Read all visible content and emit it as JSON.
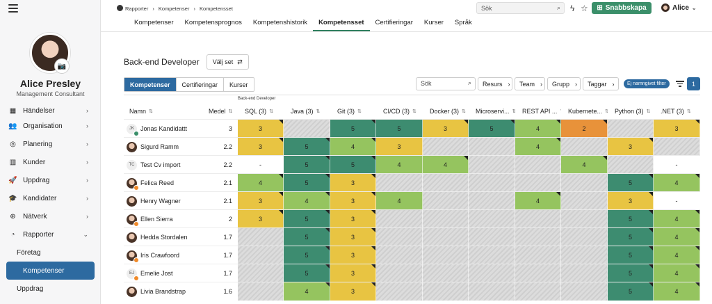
{
  "user": {
    "name": "Alice Presley",
    "role": "Management Consultant"
  },
  "nav": [
    {
      "label": "Händelser",
      "icon": "calendar-icon"
    },
    {
      "label": "Organisation",
      "icon": "users-icon"
    },
    {
      "label": "Planering",
      "icon": "planning-icon"
    },
    {
      "label": "Kunder",
      "icon": "building-icon"
    },
    {
      "label": "Uppdrag",
      "icon": "rocket-icon"
    },
    {
      "label": "Kandidater",
      "icon": "graduation-icon"
    },
    {
      "label": "Nätverk",
      "icon": "globe-icon"
    },
    {
      "label": "Rapporter",
      "icon": "pie-chart-icon"
    }
  ],
  "subnav": [
    "Företag",
    "Kompetenser",
    "Uppdrag"
  ],
  "topbar": {
    "breadcrumb": [
      "Rapporter",
      "Kompetenser",
      "Kompetensset"
    ],
    "search_placeholder": "Sök",
    "quick_create": "Snabbskapa",
    "user_short": "Alice"
  },
  "tabs": [
    "Kompetenser",
    "Kompetensprognos",
    "Kompetenshistorik",
    "Kompetensset",
    "Certifieringar",
    "Kurser",
    "Språk"
  ],
  "set": {
    "title": "Back-end Developer",
    "choose_label": "Välj set"
  },
  "segments": [
    "Kompetenser",
    "Certifieringar",
    "Kurser"
  ],
  "filters": {
    "search": "Sök",
    "buttons": [
      "Resurs",
      "Team",
      "Grupp",
      "Taggar"
    ],
    "chip": "Ej namngivet filter",
    "count": "1"
  },
  "table": {
    "group": "Back-end Developer",
    "name_header": "Namn",
    "mean_header": "Medel",
    "columns": [
      "SQL (3)",
      "Java (3)",
      "Git (3)",
      "CI/CD (3)",
      "Docker (3)",
      "Microservi...",
      "REST API ...",
      "Kubernete...",
      "Python (3)",
      ".NET (3)"
    ],
    "rows": [
      {
        "name": "Jonas Kandidattt",
        "initials": "JK",
        "badge": "green",
        "mean": "3",
        "cells": [
          "3",
          "",
          "5",
          "5",
          "3",
          "5",
          "4",
          "2",
          "",
          "3"
        ]
      },
      {
        "name": "Sigurd Ramm",
        "initials": "",
        "badge": "",
        "mean": "2.2",
        "cells": [
          "3",
          "5",
          "4",
          "3",
          "",
          "",
          "4",
          "",
          "3",
          ""
        ]
      },
      {
        "name": "Test Cv import",
        "initials": "TC",
        "badge": "",
        "mean": "2.2",
        "cells": [
          "-",
          "5",
          "5",
          "4",
          "4",
          "",
          "",
          "4",
          "",
          "-"
        ]
      },
      {
        "name": "Felica Reed",
        "initials": "",
        "badge": "orange",
        "mean": "2.1",
        "cells": [
          "4",
          "5",
          "3",
          "",
          "",
          "",
          "",
          "",
          "5",
          "4"
        ]
      },
      {
        "name": "Henry Wagner",
        "initials": "",
        "badge": "",
        "mean": "2.1",
        "cells": [
          "3",
          "4",
          "3",
          "4",
          "",
          "",
          "4",
          "",
          "3",
          "-"
        ]
      },
      {
        "name": "Ellen Sierra",
        "initials": "",
        "badge": "orange",
        "mean": "2",
        "cells": [
          "3",
          "5",
          "3",
          "",
          "",
          "",
          "",
          "",
          "5",
          "4"
        ]
      },
      {
        "name": "Hedda Stordalen",
        "initials": "",
        "badge": "",
        "mean": "1.7",
        "cells": [
          "",
          "5",
          "3",
          "",
          "",
          "",
          "",
          "",
          "5",
          "4"
        ]
      },
      {
        "name": "Iris Crawfoord",
        "initials": "",
        "badge": "orange",
        "mean": "1.7",
        "cells": [
          "",
          "5",
          "3",
          "",
          "",
          "",
          "",
          "",
          "5",
          "4"
        ]
      },
      {
        "name": "Emelie Jost",
        "initials": "EJ",
        "badge": "orange",
        "mean": "1.7",
        "cells": [
          "",
          "5",
          "3",
          "",
          "",
          "",
          "",
          "",
          "5",
          "4"
        ]
      },
      {
        "name": "Livia Brandstrap",
        "initials": "",
        "badge": "",
        "mean": "1.6",
        "cells": [
          "",
          "4",
          "3",
          "",
          "",
          "",
          "",
          "",
          "5",
          "4"
        ]
      }
    ]
  },
  "colors": {
    "5": "#3d8c70",
    "4": "#95c45f",
    "3": "#e8c442",
    "2": "#e8923a",
    "-": "#ffffff",
    "accent": "#2d6aa0",
    "brand": "#3b8f6a"
  }
}
